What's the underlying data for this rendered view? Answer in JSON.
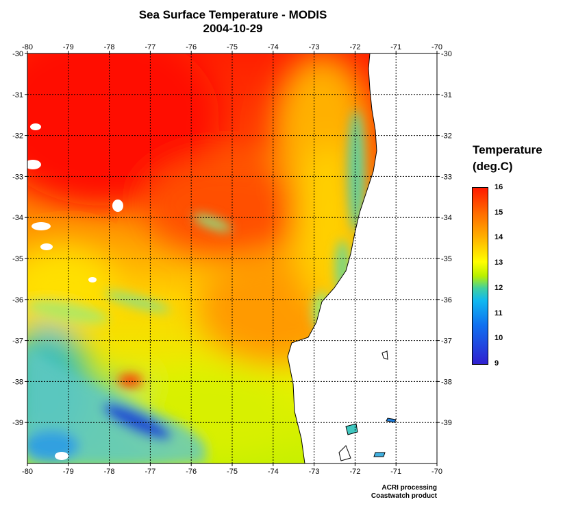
{
  "title": {
    "line1": "Sea Surface Temperature - MODIS",
    "line2": "2004-10-29"
  },
  "map": {
    "lon_ticks": [
      "-80",
      "-79",
      "-78",
      "-77",
      "-76",
      "-75",
      "-74",
      "-73",
      "-72",
      "-71",
      "-70"
    ],
    "lat_ticks": [
      "-30",
      "-31",
      "-32",
      "-33",
      "-34",
      "-35",
      "-36",
      "-37",
      "-38",
      "-39"
    ],
    "lon_range": [
      -80,
      -70
    ],
    "lat_range": [
      -40,
      -30
    ],
    "grid": true,
    "land_color": "#ffffff",
    "coastline_color": "#000000"
  },
  "legend": {
    "title_line1": "Temperature",
    "title_line2": "(deg.C)",
    "labels": [
      "16",
      "15",
      "14",
      "13",
      "12",
      "11",
      "10",
      "9"
    ],
    "range": [
      9,
      16
    ],
    "placement": "right",
    "colors": [
      "#ff1a00",
      "#ff6a00",
      "#ffb000",
      "#ffff00",
      "#b8f000",
      "#40d0a0",
      "#10b8f0",
      "#1070f0",
      "#3020d0"
    ]
  },
  "credits": {
    "line1": "ACRI processing",
    "line2": "Coastwatch product"
  }
}
